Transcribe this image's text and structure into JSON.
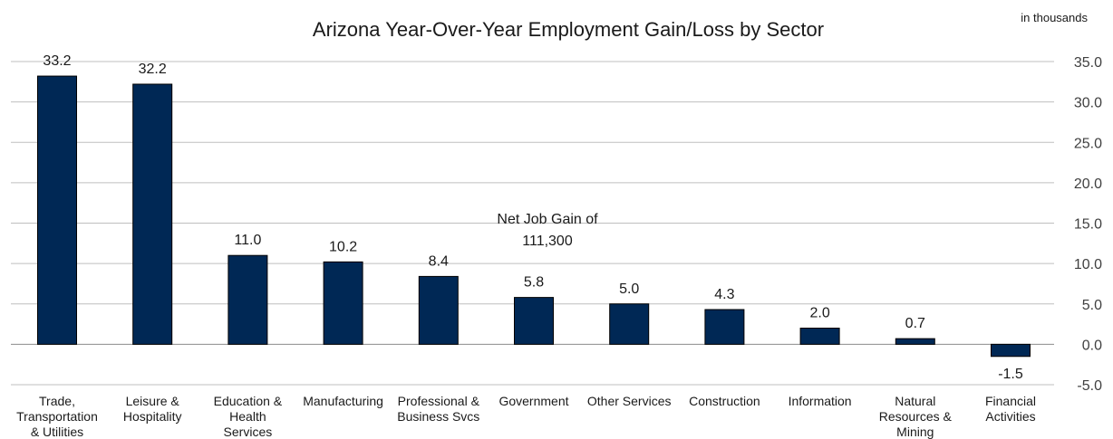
{
  "chart_data": {
    "type": "bar",
    "title": "Arizona Year-Over-Year Employment Gain/Loss by Sector",
    "unit_note": "in thousands",
    "annotation": [
      "Net Job Gain of",
      "111,300"
    ],
    "categories": [
      [
        "Trade,",
        "Transportation",
        "& Utilities"
      ],
      [
        "Leisure &",
        "Hospitality"
      ],
      [
        "Education &",
        "Health",
        "Services"
      ],
      [
        "Manufacturing"
      ],
      [
        "Professional &",
        "Business Svcs"
      ],
      [
        "Government"
      ],
      [
        "Other Services"
      ],
      [
        "Construction"
      ],
      [
        "Information"
      ],
      [
        "Natural",
        "Resources &",
        "Mining"
      ],
      [
        "Financial",
        "Activities"
      ]
    ],
    "values": [
      33.2,
      32.2,
      11.0,
      10.2,
      8.4,
      5.8,
      5.0,
      4.3,
      2.0,
      0.7,
      -1.5
    ],
    "data_labels": [
      "33.2",
      "32.2",
      "11.0",
      "10.2",
      "8.4",
      "5.8",
      "5.0",
      "4.3",
      "2.0",
      "0.7",
      "-1.5"
    ],
    "ylim": [
      -5.0,
      35.0
    ],
    "yticks": [
      35.0,
      30.0,
      25.0,
      20.0,
      15.0,
      10.0,
      5.0,
      0.0,
      -5.0
    ],
    "ytick_labels": [
      "35.0",
      "30.0",
      "25.0",
      "20.0",
      "15.0",
      "10.0",
      "5.0",
      "0.0",
      "-5.0"
    ],
    "y_axis_side": "right",
    "grid": true,
    "colors": {
      "bar": "#002855",
      "grid": "#bfbfbf",
      "zero_line": "#8c8c8c"
    }
  }
}
